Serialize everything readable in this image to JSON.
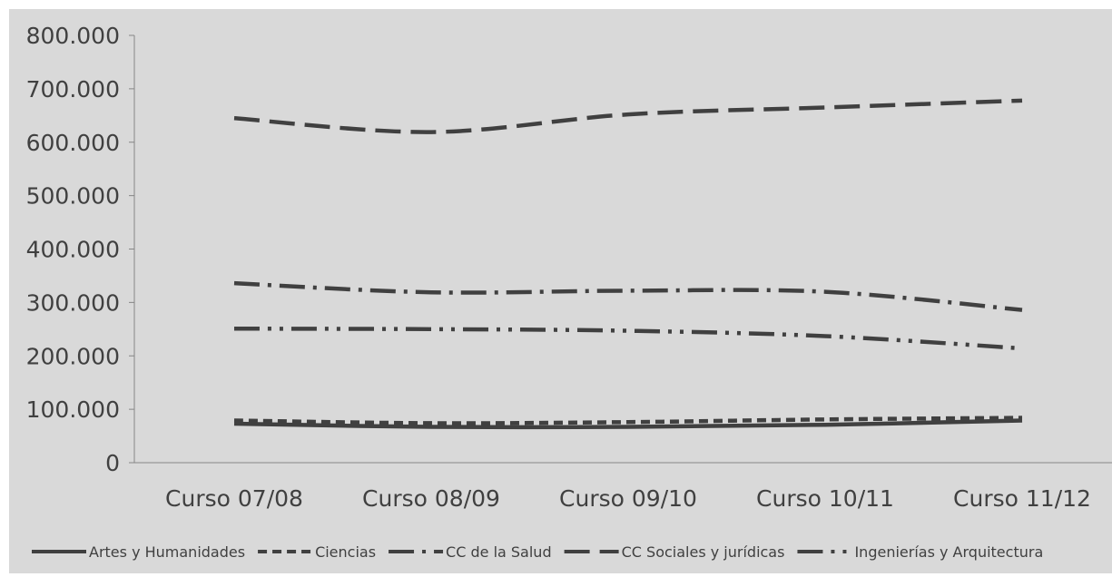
{
  "chart_data": {
    "type": "line",
    "title": "",
    "xlabel": "",
    "ylabel": "",
    "categories": [
      "Curso 07/08",
      "Curso 08/09",
      "Curso 09/10",
      "Curso 10/11",
      "Curso 11/12"
    ],
    "y_ticks": [
      "0",
      "100.000",
      "200.000",
      "300.000",
      "400.000",
      "500.000",
      "600.000",
      "700.000",
      "800.000"
    ],
    "ylim": [
      0,
      800000
    ],
    "grid": false,
    "legend_position": "bottom",
    "background_color": "#d9d9d9",
    "line_color": "#404040",
    "series": [
      {
        "name": "Artes y Humanidades",
        "dash": "solid",
        "values": [
          73000,
          67000,
          67000,
          71000,
          79000
        ]
      },
      {
        "name": "Ciencias",
        "dash": "dash",
        "values": [
          79000,
          74000,
          76000,
          81000,
          84000
        ]
      },
      {
        "name": "CC de la Salud",
        "dash": "dashdot",
        "values": [
          336000,
          319000,
          322000,
          320000,
          286000
        ]
      },
      {
        "name": "CC Sociales y jurídicas",
        "dash": "longdash",
        "values": [
          645000,
          619000,
          652000,
          665000,
          678000
        ]
      },
      {
        "name": "Ingenierías y Arquitectura",
        "dash": "dashdotdot",
        "values": [
          251000,
          250000,
          247000,
          237000,
          214000
        ]
      }
    ]
  }
}
